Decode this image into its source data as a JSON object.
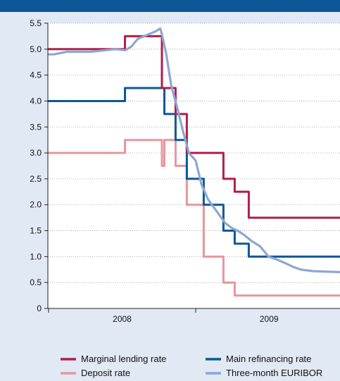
{
  "chart_data": {
    "type": "line",
    "title": "",
    "xlabel": "",
    "ylabel": "",
    "x_range": [
      "2007-07-01",
      "2009-12-31"
    ],
    "x_tick_labels": [
      "2008",
      "2009"
    ],
    "ylim": [
      0,
      5.5
    ],
    "y_ticks": [
      0,
      0.5,
      1.0,
      1.5,
      2.0,
      2.5,
      3.0,
      3.5,
      4.0,
      4.5,
      5.0,
      5.5
    ],
    "y_tick_labels": [
      "0",
      "0.5",
      "1.0",
      "1.5",
      "2.0",
      "2.5",
      "3.0",
      "3.5",
      "4.0",
      "4.5",
      "5.0",
      "5.5"
    ],
    "grid": "horizontal dotted",
    "legend_position": "bottom",
    "series": [
      {
        "name": "Marginal lending rate",
        "color": "#b01e4b",
        "step": true,
        "points": [
          [
            "2007-07-01",
            5.0
          ],
          [
            "2008-07-09",
            5.25
          ],
          [
            "2008-10-09",
            4.25
          ],
          [
            "2008-11-12",
            3.75
          ],
          [
            "2008-12-10",
            3.0
          ],
          [
            "2009-01-21",
            3.0
          ],
          [
            "2009-03-11",
            2.5
          ],
          [
            "2009-04-08",
            2.25
          ],
          [
            "2009-05-13",
            1.75
          ],
          [
            "2009-12-31",
            1.75
          ]
        ]
      },
      {
        "name": "Main refinancing rate",
        "color": "#0c5896",
        "step": true,
        "points": [
          [
            "2007-07-01",
            4.0
          ],
          [
            "2008-07-09",
            4.25
          ],
          [
            "2008-10-15",
            3.75
          ],
          [
            "2008-11-12",
            3.25
          ],
          [
            "2008-12-10",
            2.5
          ],
          [
            "2009-01-21",
            2.0
          ],
          [
            "2009-03-11",
            1.5
          ],
          [
            "2009-04-08",
            1.25
          ],
          [
            "2009-05-13",
            1.0
          ],
          [
            "2009-12-31",
            1.0
          ]
        ]
      },
      {
        "name": "Deposit rate",
        "color": "#e8969a",
        "step": true,
        "points": [
          [
            "2007-07-01",
            3.0
          ],
          [
            "2008-07-09",
            3.25
          ],
          [
            "2008-10-09",
            2.75
          ],
          [
            "2008-10-15",
            3.25
          ],
          [
            "2008-11-12",
            2.75
          ],
          [
            "2008-12-10",
            2.0
          ],
          [
            "2009-01-21",
            1.0
          ],
          [
            "2009-03-11",
            0.5
          ],
          [
            "2009-04-08",
            0.25
          ],
          [
            "2009-12-31",
            0.25
          ]
        ]
      },
      {
        "name": "Three-month EURIBOR",
        "color": "#8ea6d2",
        "step": false,
        "points": [
          [
            "2007-07-01",
            4.65
          ],
          [
            "2007-07-20",
            4.55
          ],
          [
            "2007-08-01",
            4.4
          ],
          [
            "2007-08-10",
            4.3
          ],
          [
            "2007-08-22",
            4.4
          ],
          [
            "2007-09-05",
            4.35
          ],
          [
            "2007-09-20",
            4.4
          ],
          [
            "2007-10-05",
            4.45
          ],
          [
            "2007-10-20",
            4.7
          ],
          [
            "2007-11-05",
            4.75
          ],
          [
            "2007-11-25",
            4.8
          ],
          [
            "2007-12-15",
            4.9
          ],
          [
            "2008-01-15",
            4.9
          ],
          [
            "2008-02-15",
            4.95
          ],
          [
            "2008-04-15",
            4.95
          ],
          [
            "2008-06-15",
            5.0
          ],
          [
            "2008-07-10",
            4.98
          ],
          [
            "2008-07-25",
            5.05
          ],
          [
            "2008-08-10",
            5.2
          ],
          [
            "2008-09-10",
            5.3
          ],
          [
            "2008-09-25",
            5.35
          ],
          [
            "2008-10-05",
            5.4
          ],
          [
            "2008-10-10",
            5.25
          ],
          [
            "2008-10-20",
            4.9
          ],
          [
            "2008-11-01",
            4.3
          ],
          [
            "2008-11-15",
            3.9
          ],
          [
            "2008-12-01",
            3.4
          ],
          [
            "2008-12-15",
            3.0
          ],
          [
            "2009-01-01",
            2.85
          ],
          [
            "2009-01-15",
            2.4
          ],
          [
            "2009-02-01",
            2.1
          ],
          [
            "2009-02-15",
            1.95
          ],
          [
            "2009-03-01",
            1.8
          ],
          [
            "2009-03-15",
            1.65
          ],
          [
            "2009-04-01",
            1.55
          ],
          [
            "2009-04-15",
            1.5
          ],
          [
            "2009-05-01",
            1.42
          ],
          [
            "2009-05-20",
            1.3
          ],
          [
            "2009-06-10",
            1.2
          ],
          [
            "2009-07-01",
            1.0
          ],
          [
            "2009-07-20",
            0.95
          ],
          [
            "2009-08-10",
            0.88
          ],
          [
            "2009-09-01",
            0.8
          ],
          [
            "2009-09-20",
            0.75
          ],
          [
            "2009-10-20",
            0.72
          ],
          [
            "2009-12-31",
            0.7
          ]
        ]
      }
    ]
  }
}
